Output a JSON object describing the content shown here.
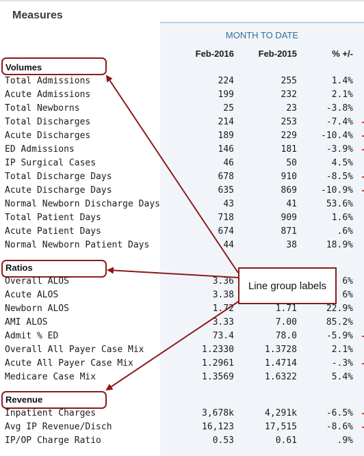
{
  "title": "Measures",
  "period_header": "MONTH TO DATE",
  "columns": {
    "c1": "Feb-2016",
    "c2": "Feb-2015",
    "c3": "% +/-"
  },
  "groups": {
    "volumes": "Volumes",
    "ratios": "Ratios",
    "revenue": "Revenue"
  },
  "callout": "Line group labels",
  "accent_colors": {
    "annotation": "#8b1a1a",
    "header_text": "#2f6f9f",
    "panel_bg": "#f1f5f9"
  },
  "rows": {
    "r0": {
      "m": "Total Admissions",
      "c1": "224",
      "c2": "255",
      "c3": "1.4%"
    },
    "r1": {
      "m": "Acute Admissions",
      "c1": "199",
      "c2": "232",
      "c3": "2.1%"
    },
    "r2": {
      "m": "Total Newborns",
      "c1": "25",
      "c2": "23",
      "c3": "-3.8%"
    },
    "r3": {
      "m": "Total Discharges",
      "c1": "214",
      "c2": "253",
      "c3": "-7.4%"
    },
    "r4": {
      "m": "Acute Discharges",
      "c1": "189",
      "c2": "229",
      "c3": "-10.4%"
    },
    "r5": {
      "m": "ED Admissions",
      "c1": "146",
      "c2": "181",
      "c3": "-3.9%"
    },
    "r6": {
      "m": "IP Surgical Cases",
      "c1": "46",
      "c2": "50",
      "c3": "4.5%"
    },
    "r7": {
      "m": "Total Discharge Days",
      "c1": "678",
      "c2": "910",
      "c3": "-8.5%"
    },
    "r8": {
      "m": "Acute Discharge Days",
      "c1": "635",
      "c2": "869",
      "c3": "-10.9%"
    },
    "r9": {
      "m": "Normal Newborn Discharge Days",
      "c1": "43",
      "c2": "41",
      "c3": "53.6%"
    },
    "r10": {
      "m": "Total Patient Days",
      "c1": "718",
      "c2": "909",
      "c3": "1.6%"
    },
    "r11": {
      "m": "Acute Patient Days",
      "c1": "674",
      "c2": "871",
      "c3": ".6%"
    },
    "r12": {
      "m": "Normal Newborn Patient Days",
      "c1": "44",
      "c2": "38",
      "c3": "18.9%"
    },
    "r13": {
      "m": "Overall ALOS",
      "c1": "3.36",
      "c2": "",
      "c3": "6%"
    },
    "r14": {
      "m": "Acute ALOS",
      "c1": "3.38",
      "c2": "",
      "c3": "6%"
    },
    "r15": {
      "m": "Newborn ALOS",
      "c1": "1.72",
      "c2": "1.71",
      "c3": "22.9%"
    },
    "r16": {
      "m": "AMI ALOS",
      "c1": "3.33",
      "c2": "7.00",
      "c3": "85.2%"
    },
    "r17": {
      "m": "Admit % ED",
      "c1": "73.4",
      "c2": "78.0",
      "c3": "-5.9%"
    },
    "r18": {
      "m": "Overall All Payer Case Mix",
      "c1": "1.2330",
      "c2": "1.3728",
      "c3": "2.1%"
    },
    "r19": {
      "m": "Acute All Payer Case Mix",
      "c1": "1.2961",
      "c2": "1.4714",
      "c3": "-.3%"
    },
    "r20": {
      "m": "Medicare Case Mix",
      "c1": "1.3569",
      "c2": "1.6322",
      "c3": "5.4%"
    },
    "r21": {
      "m": "Inpatient Charges",
      "c1": "3,678k",
      "c2": "4,291k",
      "c3": "-6.5%"
    },
    "r22": {
      "m": "Avg IP Revenue/Disch",
      "c1": "16,123",
      "c2": "17,515",
      "c3": "-8.6%"
    },
    "r23": {
      "m": "IP/OP Charge Ratio",
      "c1": "0.53",
      "c2": "0.61",
      "c3": ".9%"
    }
  }
}
